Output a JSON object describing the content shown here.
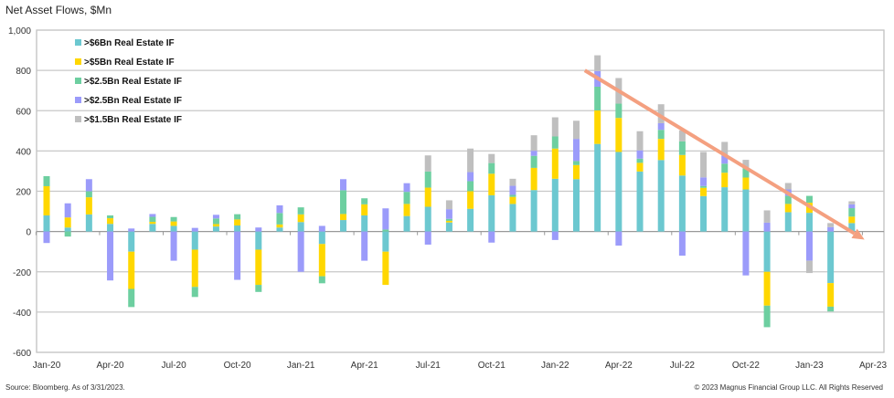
{
  "chart_data": {
    "type": "bar",
    "stacked": true,
    "title": "Net Asset Flows, $Mn",
    "xlabel": "",
    "ylabel": "",
    "ylim": [
      -600,
      1000
    ],
    "yticks": [
      1000,
      800,
      600,
      400,
      200,
      0,
      -200,
      -400,
      -600
    ],
    "ytick_labels": [
      "1,000",
      "800",
      "600",
      "400",
      "200",
      "0",
      "-200",
      "-400",
      "-600"
    ],
    "grid": true,
    "legend_placement": "top-left",
    "categories": [
      "Jan-20",
      "Feb-20",
      "Mar-20",
      "Apr-20",
      "May-20",
      "Jun-20",
      "Jul-20",
      "Aug-20",
      "Sep-20",
      "Oct-20",
      "Nov-20",
      "Dec-20",
      "Jan-21",
      "Feb-21",
      "Mar-21",
      "Apr-21",
      "May-21",
      "Jun-21",
      "Jul-21",
      "Aug-21",
      "Sep-21",
      "Oct-21",
      "Nov-21",
      "Dec-21",
      "Jan-22",
      "Feb-22",
      "Mar-22",
      "Apr-22",
      "May-22",
      "Jun-22",
      "Jul-22",
      "Aug-22",
      "Sep-22",
      "Oct-22",
      "Nov-22",
      "Dec-22",
      "Jan-23",
      "Feb-23",
      "Mar-23"
    ],
    "xtick_labels": [
      "Jan-20",
      "Apr-20",
      "Jul-20",
      "Oct-20",
      "Jan-21",
      "Apr-21",
      "Jul-21",
      "Oct-21",
      "Jan-22",
      "Apr-22",
      "Jul-22",
      "Oct-22",
      "Jan-23",
      "Apr-23"
    ],
    "series": [
      {
        "name": ">$6Bn Real Estate IF",
        "color": "#6CC8D0",
        "values": [
          80,
          20,
          85,
          38,
          -100,
          38,
          28,
          -90,
          25,
          30,
          -90,
          20,
          47,
          -62,
          57,
          80,
          -100,
          77,
          123,
          45,
          113,
          180,
          137,
          206,
          262,
          260,
          435,
          395,
          298,
          355,
          278,
          176,
          220,
          209,
          -200,
          96,
          93,
          -256,
          42
        ]
      },
      {
        "name": ">$5Bn Real Estate IF",
        "color": "#FFD700",
        "values": [
          145,
          50,
          85,
          28,
          -185,
          10,
          22,
          -185,
          12,
          30,
          -175,
          15,
          38,
          -160,
          30,
          55,
          -165,
          60,
          95,
          8,
          87,
          107,
          35,
          110,
          150,
          70,
          166,
          169,
          43,
          105,
          102,
          41,
          72,
          59,
          -168,
          41,
          50,
          -117,
          32
        ]
      },
      {
        "name": ">$2.5Bn Real Estate IF",
        "color": "#6DCFA0",
        "values": [
          50,
          -25,
          30,
          14,
          -90,
          25,
          22,
          -50,
          28,
          26,
          -35,
          57,
          35,
          -35,
          118,
          30,
          10,
          60,
          80,
          10,
          50,
          53,
          10,
          60,
          60,
          20,
          118,
          71,
          21,
          45,
          68,
          9,
          45,
          46,
          -107,
          40,
          34,
          -24,
          42
        ]
      },
      {
        "name": ">$2.5Bn Real Estate IF",
        "color": "#9B9BFA",
        "values": [
          -57,
          70,
          60,
          -243,
          15,
          14,
          -145,
          18,
          18,
          -240,
          20,
          38,
          -200,
          28,
          55,
          -145,
          105,
          43,
          -65,
          48,
          45,
          -55,
          45,
          25,
          -42,
          110,
          78,
          -70,
          41,
          33,
          -120,
          43,
          40,
          -218,
          44,
          32,
          -145,
          22,
          19
        ]
      },
      {
        "name": ">$1.5Bn Real Estate IF",
        "color": "#BFBFBF",
        "values": [
          0,
          0,
          0,
          0,
          0,
          0,
          0,
          0,
          0,
          0,
          0,
          0,
          0,
          0,
          0,
          0,
          0,
          0,
          80,
          44,
          117,
          45,
          35,
          77,
          95,
          90,
          78,
          127,
          95,
          94,
          54,
          126,
          68,
          42,
          61,
          32,
          -61,
          20,
          15
        ]
      }
    ],
    "annotations": [
      {
        "type": "trend-arrow",
        "color": "#F4A080",
        "from": [
          25.4,
          800
        ],
        "to": [
          38.6,
          -40
        ]
      }
    ],
    "source": "Source: Bloomberg. As of 3/31/2023.",
    "copyright": "© 2023 Magnus Financial Group LLC. All Rights Reserved"
  }
}
